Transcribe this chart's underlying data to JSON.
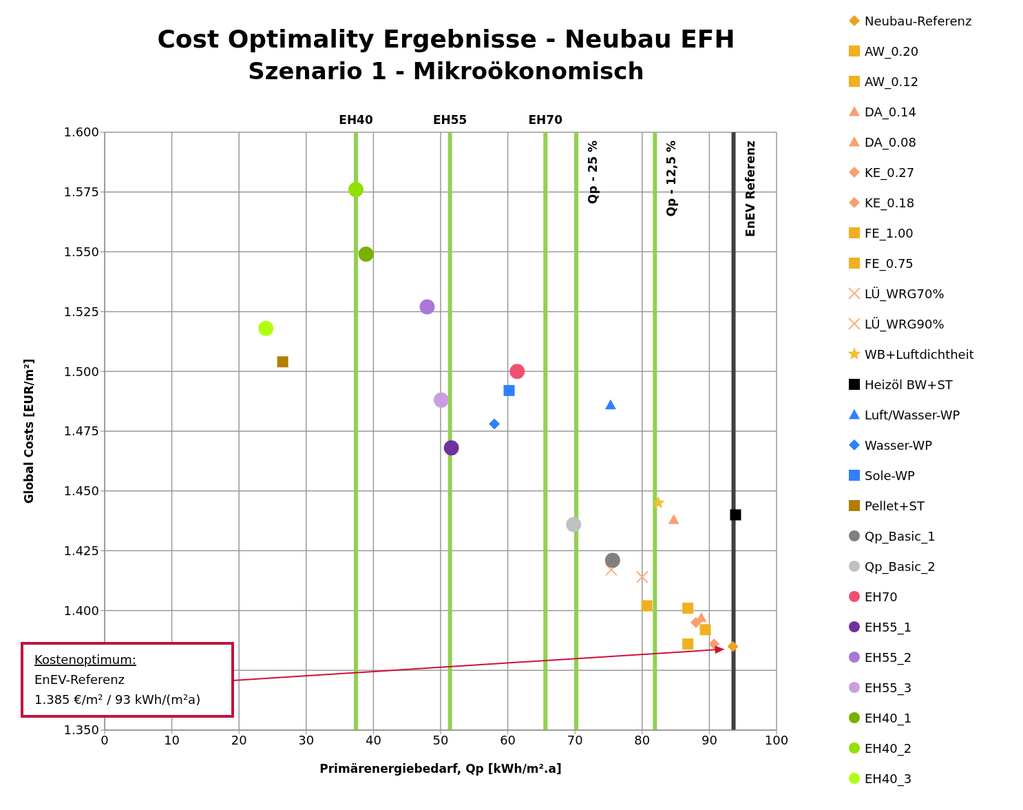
{
  "chart_data": {
    "type": "scatter",
    "title": "Cost Optimality Ergebnisse - Neubau EFH",
    "subtitle": "Szenario 1 - Mikroökonomisch",
    "xlabel": "Primärenergiebedarf, Qp [kWh/m².a]",
    "ylabel": "Global Costs [EUR/m²]",
    "xlim": [
      0,
      100
    ],
    "xticks": [
      0,
      10,
      20,
      30,
      40,
      50,
      60,
      70,
      80,
      90,
      100
    ],
    "ylim": [
      1.35,
      1.6
    ],
    "yticks": [
      {
        "value": 1.35,
        "label": "1.350"
      },
      {
        "value": 1.375,
        "label": null
      },
      {
        "value": 1.4,
        "label": "1.400"
      },
      {
        "value": 1.425,
        "label": "1.425"
      },
      {
        "value": 1.45,
        "label": "1.450"
      },
      {
        "value": 1.475,
        "label": "1.475"
      },
      {
        "value": 1.5,
        "label": "1.500"
      },
      {
        "value": 1.525,
        "label": "1.525"
      },
      {
        "value": 1.55,
        "label": "1.550"
      },
      {
        "value": 1.575,
        "label": "1.575"
      },
      {
        "value": 1.6,
        "label": "1.600"
      }
    ],
    "grid": true,
    "legend": "right",
    "ref_lines": [
      {
        "axis": "x",
        "value": 37.4,
        "label": "EH40",
        "color": "#92d050"
      },
      {
        "axis": "x",
        "value": 51.4,
        "label": "EH55",
        "color": "#92d050"
      },
      {
        "axis": "x",
        "value": 65.6,
        "label": "EH70",
        "color": "#92d050"
      },
      {
        "axis": "x",
        "value": 70.2,
        "label": "Qp - 25 %",
        "color": "#92d050"
      },
      {
        "axis": "x",
        "value": 81.9,
        "label": "Qp - 12,5 %",
        "color": "#92d050"
      },
      {
        "axis": "x",
        "value": 93.6,
        "label": "EnEV Referenz",
        "color": "#404040"
      }
    ],
    "annotations": [
      "Kostenoptimum:\nEnEV-Referenz\n1.385 €/m² / 93 kWh/(m²a)"
    ],
    "series": [
      {
        "name": "Neubau-Referenz",
        "color": "#f0a020",
        "marker": "diamond",
        "x": [
          93.5
        ],
        "values": [
          1.385
        ]
      },
      {
        "name": "AW_0.20",
        "color": "#f0b020",
        "marker": "square",
        "x": [
          86.8
        ],
        "values": [
          1.386
        ]
      },
      {
        "name": "AW_0.12",
        "color": "#f0b020",
        "marker": "square",
        "x": [
          80.7
        ],
        "values": [
          1.402
        ]
      },
      {
        "name": "DA_0.14",
        "color": "#f8a070",
        "marker": "triangle",
        "x": [
          88.8
        ],
        "values": [
          1.397
        ]
      },
      {
        "name": "DA_0.08",
        "color": "#f8a070",
        "marker": "triangle",
        "x": [
          84.7
        ],
        "values": [
          1.438
        ]
      },
      {
        "name": "KE_0.27",
        "color": "#f8a070",
        "marker": "diamond",
        "x": [
          90.7
        ],
        "values": [
          1.386
        ]
      },
      {
        "name": "KE_0.18",
        "color": "#f8a070",
        "marker": "diamond",
        "x": [
          88.0
        ],
        "values": [
          1.395
        ]
      },
      {
        "name": "FE_1.00",
        "color": "#f0b020",
        "marker": "square",
        "x": [
          89.4
        ],
        "values": [
          1.392
        ]
      },
      {
        "name": "FE_0.75",
        "color": "#f0b020",
        "marker": "square",
        "x": [
          86.8
        ],
        "values": [
          1.401
        ]
      },
      {
        "name": "LÜ_WRG70%",
        "color": "#f8b080",
        "marker": "cross",
        "x": [
          80.0
        ],
        "values": [
          1.414
        ]
      },
      {
        "name": "LÜ_WRG90%",
        "color": "#f8b080",
        "marker": "cross",
        "x": [
          75.4
        ],
        "values": [
          1.417
        ]
      },
      {
        "name": "WB+Luftdichtheit",
        "color": "#f0c030",
        "marker": "star",
        "x": [
          82.4
        ],
        "values": [
          1.445
        ]
      },
      {
        "name": "Heizöl BW+ST",
        "color": "#000000",
        "marker": "square",
        "x": [
          93.9
        ],
        "values": [
          1.44
        ]
      },
      {
        "name": "Luft/Wasser-WP",
        "color": "#2f7fff",
        "marker": "triangle",
        "x": [
          75.3
        ],
        "values": [
          1.486
        ]
      },
      {
        "name": "Wasser-WP",
        "color": "#2f7fff",
        "marker": "diamond",
        "x": [
          58.0
        ],
        "values": [
          1.478
        ]
      },
      {
        "name": "Sole-WP",
        "color": "#2f7fff",
        "marker": "square",
        "x": [
          60.2
        ],
        "values": [
          1.492
        ]
      },
      {
        "name": "Pellet+ST",
        "color": "#b07f00",
        "marker": "square",
        "x": [
          26.5
        ],
        "values": [
          1.504
        ]
      },
      {
        "name": "Qp_Basic_1",
        "color": "#808080",
        "marker": "circle",
        "x": [
          75.6
        ],
        "values": [
          1.421
        ]
      },
      {
        "name": "Qp_Basic_2",
        "color": "#c0c0c0",
        "marker": "circle",
        "x": [
          69.8
        ],
        "values": [
          1.436
        ]
      },
      {
        "name": "EH70",
        "color": "#f05070",
        "marker": "circle",
        "x": [
          61.4
        ],
        "values": [
          1.5
        ]
      },
      {
        "name": "EH55_1",
        "color": "#7030a0",
        "marker": "circle",
        "x": [
          51.6
        ],
        "values": [
          1.468
        ]
      },
      {
        "name": "EH55_2",
        "color": "#a878d8",
        "marker": "circle",
        "x": [
          48.0
        ],
        "values": [
          1.527
        ]
      },
      {
        "name": "EH55_3",
        "color": "#c8a0e0",
        "marker": "circle",
        "x": [
          50.1
        ],
        "values": [
          1.488
        ]
      },
      {
        "name": "EH40_1",
        "color": "#78b000",
        "marker": "circle",
        "x": [
          38.9
        ],
        "values": [
          1.549
        ]
      },
      {
        "name": "EH40_2",
        "color": "#90e000",
        "marker": "circle",
        "x": [
          37.4
        ],
        "values": [
          1.576
        ]
      },
      {
        "name": "EH40_3",
        "color": "#b0ff10",
        "marker": "circle",
        "x": [
          24.0
        ],
        "values": [
          1.518
        ]
      }
    ]
  }
}
